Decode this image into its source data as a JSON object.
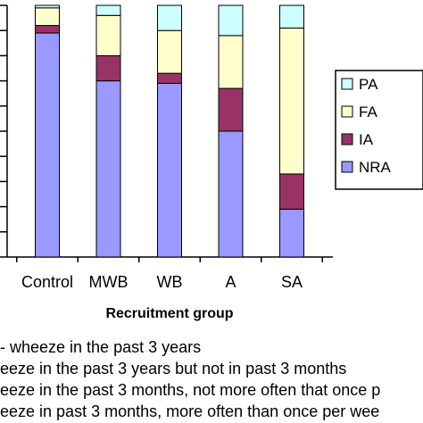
{
  "chart_data": {
    "type": "bar",
    "stacked": true,
    "categories": [
      "Control",
      "MWB",
      "WB",
      "A",
      "SA"
    ],
    "series": [
      {
        "name": "NRA",
        "color": "#9999ff",
        "values": [
          89,
          70,
          69,
          50,
          19
        ]
      },
      {
        "name": "IA",
        "color": "#993366",
        "values": [
          3,
          10,
          4,
          17,
          14
        ]
      },
      {
        "name": "FA",
        "color": "#ffffcc",
        "values": [
          7,
          16,
          17,
          21,
          58
        ]
      },
      {
        "name": "PA",
        "color": "#ccffff",
        "values": [
          1,
          4,
          10,
          12,
          9
        ]
      }
    ],
    "ylim": [
      0,
      100
    ],
    "yticks": [
      0,
      10,
      20,
      30,
      40,
      50,
      60,
      70,
      80,
      90,
      100
    ],
    "xlabel": "Recruitment group",
    "legend_order": [
      "PA",
      "FA",
      "IA",
      "NRA"
    ],
    "legend_position": "right",
    "grid": false
  },
  "footnotes": [
    "- wheeze in the past 3 years",
    "eeze in the past 3 years but not in past 3 months",
    "eeze in the past 3 months, not more often that once p",
    "eeze in past 3 months, more often than once per wee"
  ]
}
